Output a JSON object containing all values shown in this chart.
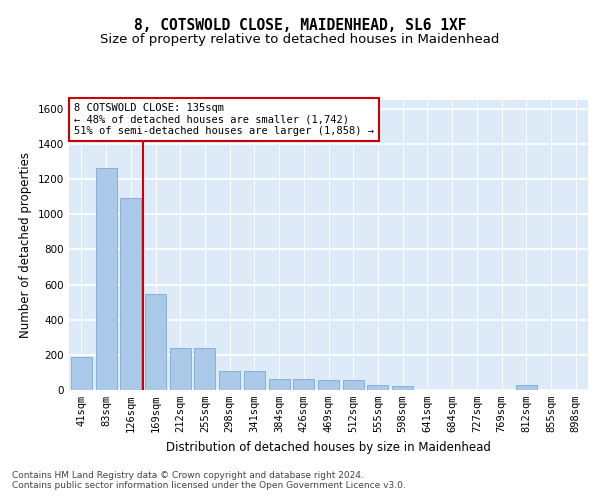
{
  "title": "8, COTSWOLD CLOSE, MAIDENHEAD, SL6 1XF",
  "subtitle": "Size of property relative to detached houses in Maidenhead",
  "xlabel": "Distribution of detached houses by size in Maidenhead",
  "ylabel": "Number of detached properties",
  "categories": [
    "41sqm",
    "83sqm",
    "126sqm",
    "169sqm",
    "212sqm",
    "255sqm",
    "298sqm",
    "341sqm",
    "384sqm",
    "426sqm",
    "469sqm",
    "512sqm",
    "555sqm",
    "598sqm",
    "641sqm",
    "684sqm",
    "727sqm",
    "769sqm",
    "812sqm",
    "855sqm",
    "898sqm"
  ],
  "values": [
    190,
    1265,
    1090,
    545,
    240,
    240,
    110,
    110,
    60,
    60,
    55,
    55,
    30,
    20,
    0,
    0,
    0,
    0,
    30,
    0,
    0
  ],
  "bar_color": "#aac9e8",
  "bar_edgecolor": "#80aad0",
  "background_color": "#ddeaf7",
  "grid_color": "#ffffff",
  "vline_x": 2.5,
  "vline_color": "#cc0000",
  "annotation_text": "8 COTSWOLD CLOSE: 135sqm\n← 48% of detached houses are smaller (1,742)\n51% of semi-detached houses are larger (1,858) →",
  "annotation_box_color": "#ffffff",
  "annotation_box_edgecolor": "#cc0000",
  "footer_text": "Contains HM Land Registry data © Crown copyright and database right 2024.\nContains public sector information licensed under the Open Government Licence v3.0.",
  "ylim": [
    0,
    1650
  ],
  "yticks": [
    0,
    200,
    400,
    600,
    800,
    1000,
    1200,
    1400,
    1600
  ],
  "title_fontsize": 10.5,
  "subtitle_fontsize": 9.5,
  "label_fontsize": 8.5,
  "tick_fontsize": 7.5,
  "footer_fontsize": 6.5,
  "annotation_fontsize": 7.5
}
